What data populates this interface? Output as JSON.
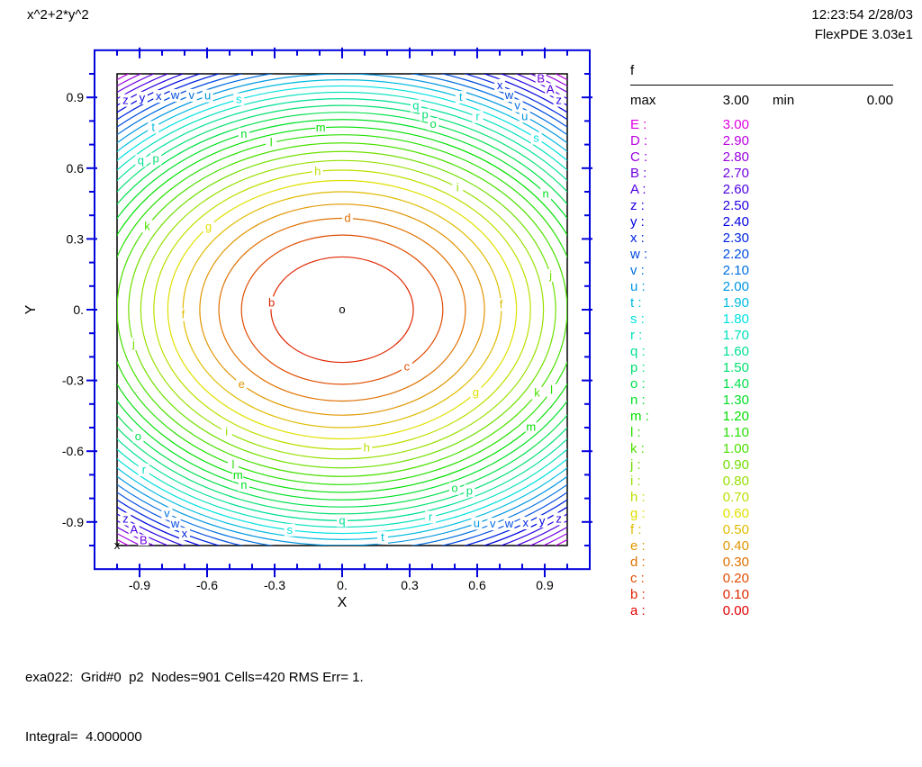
{
  "header": {
    "title": "x^2+2*y^2",
    "timestamp": "12:23:54 2/28/03",
    "app_version": "FlexPDE 3.03e1"
  },
  "legend": {
    "variable": "f",
    "max_label": "max",
    "max_value": "3.00",
    "min_label": "min",
    "min_value": "0.00"
  },
  "footer": {
    "line1": "exa022:  Grid#0  p2  Nodes=901 Cells=420 RMS Err= 1.",
    "line2": "Integral=  4.000000"
  },
  "chart_data": {
    "type": "contour",
    "title": "x^2+2*y^2",
    "function": "x^2+2*y^2",
    "xlabel": "X",
    "ylabel": "Y",
    "xlim": [
      -1,
      1
    ],
    "ylim": [
      -1,
      1
    ],
    "x_tick_labels": [
      "-0.9",
      "-0.6",
      "-0.3",
      "0.",
      "0.3",
      "0.6",
      "0.9"
    ],
    "x_tick_values": [
      -0.9,
      -0.6,
      -0.3,
      0,
      0.3,
      0.6,
      0.9
    ],
    "y_tick_labels": [
      "0.9",
      "0.6",
      "0.3",
      "0.",
      "-0.3",
      "-0.6",
      "-0.9"
    ],
    "y_tick_values": [
      0.9,
      0.6,
      0.3,
      0,
      -0.3,
      -0.6,
      -0.9
    ],
    "minor_tick_step": 0.1,
    "axis_color": "#0000DD",
    "frame_color": "#000000",
    "colormap": {
      "hue_start": 0,
      "hue_end": 300,
      "value_min": 0,
      "value_max": 3,
      "saturation": 100,
      "lightness": 44
    },
    "levels": [
      {
        "letter": "a",
        "value": 0.0
      },
      {
        "letter": "b",
        "value": 0.1
      },
      {
        "letter": "c",
        "value": 0.2
      },
      {
        "letter": "d",
        "value": 0.3
      },
      {
        "letter": "e",
        "value": 0.4
      },
      {
        "letter": "f",
        "value": 0.5
      },
      {
        "letter": "g",
        "value": 0.6
      },
      {
        "letter": "h",
        "value": 0.7
      },
      {
        "letter": "i",
        "value": 0.8
      },
      {
        "letter": "j",
        "value": 0.9
      },
      {
        "letter": "k",
        "value": 1.0
      },
      {
        "letter": "l",
        "value": 1.1
      },
      {
        "letter": "m",
        "value": 1.2
      },
      {
        "letter": "n",
        "value": 1.3
      },
      {
        "letter": "o",
        "value": 1.4
      },
      {
        "letter": "p",
        "value": 1.5
      },
      {
        "letter": "q",
        "value": 1.6
      },
      {
        "letter": "r",
        "value": 1.7
      },
      {
        "letter": "s",
        "value": 1.8
      },
      {
        "letter": "t",
        "value": 1.9
      },
      {
        "letter": "u",
        "value": 2.0
      },
      {
        "letter": "v",
        "value": 2.1
      },
      {
        "letter": "w",
        "value": 2.2
      },
      {
        "letter": "x",
        "value": 2.3
      },
      {
        "letter": "y",
        "value": 2.4
      },
      {
        "letter": "z",
        "value": 2.5
      },
      {
        "letter": "A",
        "value": 2.6
      },
      {
        "letter": "B",
        "value": 2.7
      },
      {
        "letter": "C",
        "value": 2.8
      },
      {
        "letter": "D",
        "value": 2.9
      },
      {
        "letter": "E",
        "value": 3.0
      }
    ],
    "markers": [
      {
        "symbol": "o",
        "x": 0,
        "y": 0
      },
      {
        "symbol": "x",
        "x": -1,
        "y": -1
      }
    ]
  }
}
